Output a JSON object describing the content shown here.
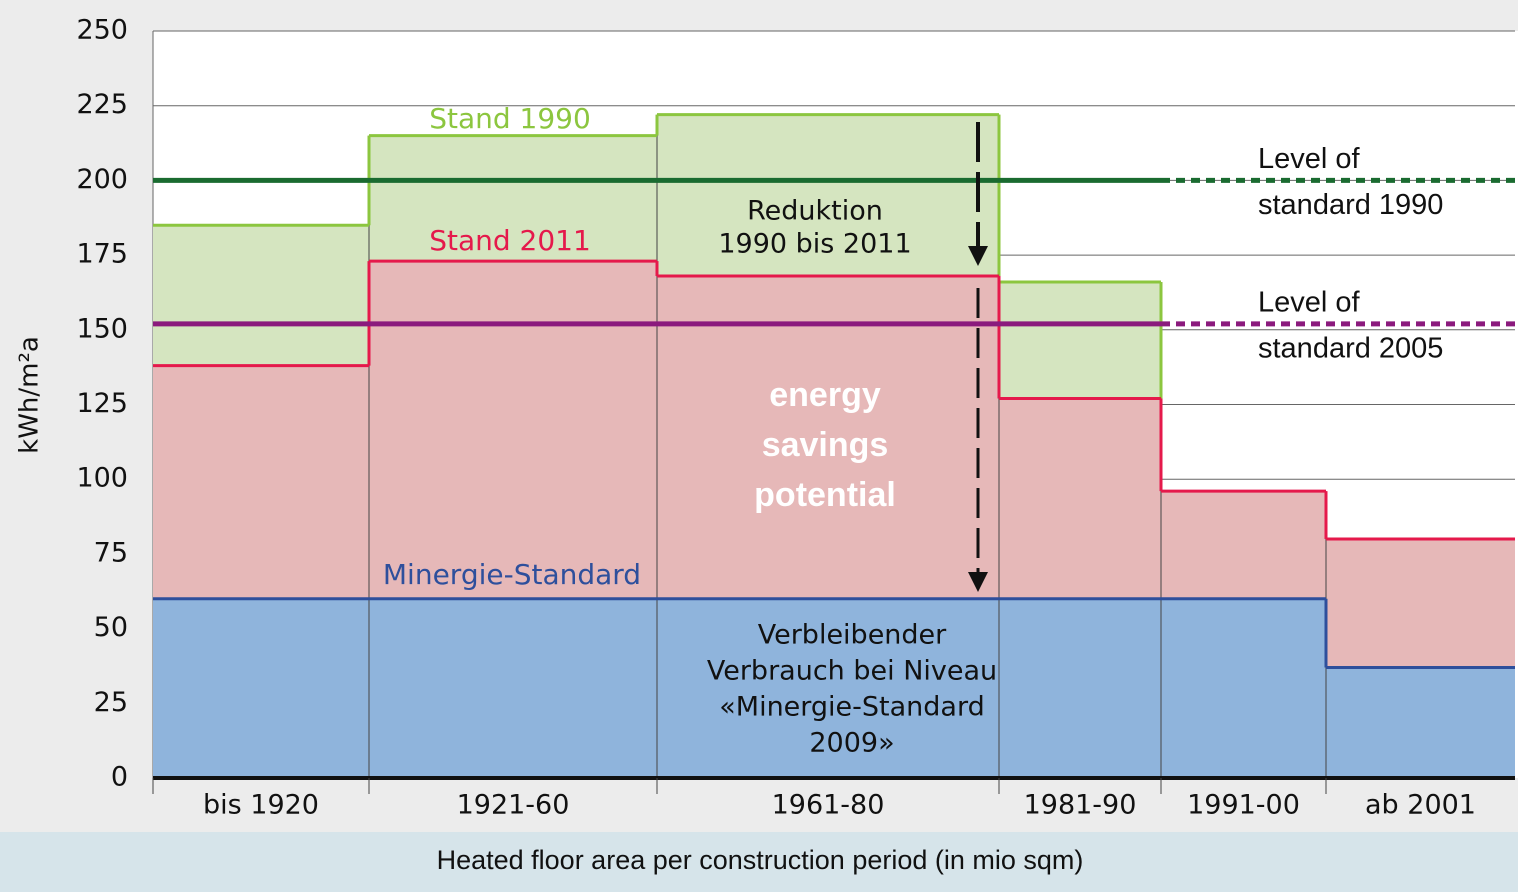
{
  "chart_data": {
    "type": "variable-width-step",
    "y_label": "kWh/m²a",
    "x_label": "Heated floor area per construction period (in mio sqm)",
    "categories": [
      "bis 1920",
      "1921-60",
      "1961-80",
      "1981-90",
      "1991-00",
      "ab 2001"
    ],
    "widths": [
      72,
      96,
      114,
      54,
      55,
      63
    ],
    "series": [
      {
        "name": "Stand 1990",
        "color": "#8cc63f",
        "fill": "#d5e5c0",
        "values": [
          185,
          215,
          222,
          166,
          null,
          null
        ]
      },
      {
        "name": "Stand 2011",
        "color": "#e5194b",
        "fill": "#e6b8b8",
        "values": [
          138,
          173,
          168,
          127,
          96,
          80
        ]
      },
      {
        "name": "Minergie-Standard",
        "color": "#2e4f9c",
        "fill": "#8fb4dc",
        "values": [
          60,
          60,
          60,
          60,
          60,
          37
        ]
      }
    ],
    "reference_lines": [
      {
        "label": [
          "Level of",
          "standard 1990"
        ],
        "value": 200,
        "color": "#1a6b30"
      },
      {
        "label": [
          "Level of",
          "standard 2005"
        ],
        "value": 152,
        "color": "#8b1a7d"
      }
    ],
    "annotations": {
      "reduction": [
        "Reduktion",
        "1990 bis 2011"
      ],
      "savings": [
        "energy",
        "savings",
        "potential"
      ],
      "remaining": [
        "Verbleibender",
        "Verbrauch bei Niveau",
        "«Minergie-Standard",
        "2009»"
      ]
    },
    "ylim": [
      0,
      250
    ],
    "yticks": [
      0,
      25,
      50,
      75,
      100,
      125,
      150,
      175,
      200,
      225,
      250
    ],
    "grid": true
  }
}
